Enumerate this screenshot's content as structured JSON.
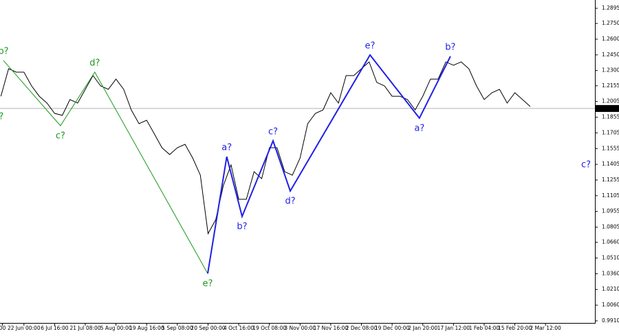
{
  "chart_data": {
    "type": "line",
    "xlim": [
      -0.78,
      18.61
    ],
    "ylim": [
      0.989,
      1.2974
    ],
    "current_price": 1.1938,
    "xticks": [
      {
        "value": -0.7,
        "label": "00"
      },
      {
        "value": 0,
        "label": "22 Jun 00:00"
      },
      {
        "value": 1,
        "label": "6 Jul 16:00"
      },
      {
        "value": 2,
        "label": "21 Jul 08:00"
      },
      {
        "value": 3,
        "label": "5 Aug 00:00"
      },
      {
        "value": 4,
        "label": "19 Aug 16:00"
      },
      {
        "value": 5,
        "label": "5 Sep 08:00"
      },
      {
        "value": 6,
        "label": "20 Sep 00:00"
      },
      {
        "value": 7,
        "label": "4 Oct 16:00"
      },
      {
        "value": 8,
        "label": "19 Oct 08:00"
      },
      {
        "value": 9,
        "label": "3 Nov 00:00"
      },
      {
        "value": 10,
        "label": "17 Nov 16:00"
      },
      {
        "value": 11,
        "label": "2 Dec 08:00"
      },
      {
        "value": 12,
        "label": "19 Dec 00:00"
      },
      {
        "value": 13,
        "label": "2 Jan 20:00"
      },
      {
        "value": 14,
        "label": "17 Jan 12:00"
      },
      {
        "value": 15,
        "label": "1 Feb 04:00"
      },
      {
        "value": 16,
        "label": "15 Feb 20:00"
      },
      {
        "value": 17,
        "label": "2 Mar 12:00"
      }
    ],
    "yticks": [
      {
        "value": 1.2895,
        "label": "1.2895"
      },
      {
        "value": 1.275,
        "label": "1.2750"
      },
      {
        "value": 1.26,
        "label": "1.2600"
      },
      {
        "value": 1.245,
        "label": "1.2450"
      },
      {
        "value": 1.23,
        "label": "1.2300"
      },
      {
        "value": 1.2155,
        "label": "1.2155"
      },
      {
        "value": 1.2005,
        "label": "1.2005"
      },
      {
        "value": 1.1855,
        "label": "1.1855"
      },
      {
        "value": 1.1705,
        "label": "1.1705"
      },
      {
        "value": 1.1555,
        "label": "1.1555"
      },
      {
        "value": 1.1405,
        "label": "1.1405"
      },
      {
        "value": 1.1255,
        "label": "1.1255"
      },
      {
        "value": 1.1105,
        "label": "1.1105"
      },
      {
        "value": 1.0955,
        "label": "1.0955"
      },
      {
        "value": 1.0805,
        "label": "1.0805"
      },
      {
        "value": 1.066,
        "label": "1.0660"
      },
      {
        "value": 1.051,
        "label": "1.0510"
      },
      {
        "value": 1.036,
        "label": "1.0360"
      },
      {
        "value": 1.021,
        "label": "1.0210"
      },
      {
        "value": 1.006,
        "label": "1.0060"
      },
      {
        "value": 0.991,
        "label": "0.9910"
      }
    ],
    "series": [
      {
        "color": "#000000",
        "x": [
          -0.75,
          -0.5,
          -0.25,
          0,
          0.25,
          0.5,
          0.75,
          1,
          1.25,
          1.5,
          1.75,
          2,
          2.25,
          2.5,
          2.75,
          3,
          3.25,
          3.5,
          3.75,
          4,
          4.25,
          4.5,
          4.75,
          5,
          5.25,
          5.5,
          5.75,
          6,
          6.25,
          6.5,
          6.75,
          7,
          7.25,
          7.5,
          7.75,
          8,
          8.25,
          8.5,
          8.75,
          9,
          9.25,
          9.5,
          9.75,
          10,
          10.25,
          10.5,
          10.75,
          11,
          11.25,
          11.5,
          11.75,
          12,
          12.25,
          12.5,
          12.75,
          13,
          13.25,
          13.5,
          13.75,
          14,
          14.25,
          14.5,
          14.75,
          15,
          15.25,
          15.5,
          15.75,
          16,
          16.25,
          16.5
        ],
        "values": [
          1.2055,
          1.2318,
          1.2285,
          1.2285,
          1.2154,
          1.2055,
          1.199,
          1.1891,
          1.1872,
          1.2023,
          1.199,
          1.2121,
          1.2252,
          1.2154,
          1.2121,
          1.2219,
          1.2121,
          1.1924,
          1.1793,
          1.1826,
          1.1695,
          1.1563,
          1.1498,
          1.1563,
          1.1596,
          1.1465,
          1.1301,
          1.0743,
          1.0875,
          1.1203,
          1.1399,
          1.1071,
          1.1071,
          1.1334,
          1.1268,
          1.1563,
          1.1563,
          1.1334,
          1.1301,
          1.1465,
          1.1793,
          1.1891,
          1.1924,
          1.2088,
          1.199,
          1.2252,
          1.2252,
          1.2318,
          1.2383,
          1.2187,
          1.2154,
          1.2055,
          1.2055,
          1.2023,
          1.1924,
          1.2055,
          1.2219,
          1.2219,
          1.2383,
          1.2351,
          1.2383,
          1.2318,
          1.2154,
          1.2023,
          1.2088,
          1.2121,
          1.199,
          1.2088,
          1.2023,
          1.1957
        ]
      }
    ],
    "waves": [
      {
        "color": "#1a9a1a",
        "width": 1,
        "x": [
          -0.67,
          1.19,
          2.31,
          5.99
        ],
        "values": [
          1.2397,
          1.1773,
          1.2285,
          1.0362
        ],
        "labels": [
          "b?",
          "c?",
          "d?",
          "e?"
        ]
      },
      {
        "color": "#1f1fe6",
        "width": 2,
        "x": [
          5.99,
          6.61,
          7.11,
          8.12,
          8.68,
          11.28,
          12.89,
          13.9
        ],
        "values": [
          1.0362,
          1.1478,
          1.0907,
          1.1629,
          1.115,
          1.2449,
          1.1846,
          1.2436
        ],
        "labels": [
          null,
          "a?",
          "b?",
          "c?",
          "d?",
          "e?",
          "a?",
          "b?"
        ]
      }
    ],
    "annotations": [
      {
        "text": "?",
        "x": -0.74,
        "y": 1.1859,
        "color": "#1a9a1a"
      },
      {
        "text": "c?",
        "x": 18.32,
        "y": 1.1399,
        "color": "#1f1fe6"
      }
    ]
  }
}
